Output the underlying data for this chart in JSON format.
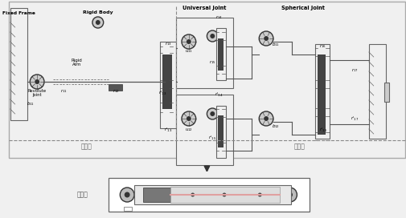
{
  "bg_color": "#f0f0f0",
  "border_color": "#888888",
  "fig_width": 5.06,
  "fig_height": 2.72,
  "label_fixed_frame": "Fixed Frame",
  "label_rigid_body": "Rigid Body",
  "label_revolute": "Revolute\nJoint",
  "label_rigid_arm": "Rigid\nArm",
  "label_universal": "Universal Joint",
  "label_spherical": "Spherical Joint",
  "label_active": "主动臂",
  "label_passive": "从动臂",
  "label_model": "模型块",
  "arrow_color": "#555555",
  "line_color": "#555555",
  "box_line_color": "#666666",
  "component_color": "#333333",
  "dashed_color": "#888888"
}
